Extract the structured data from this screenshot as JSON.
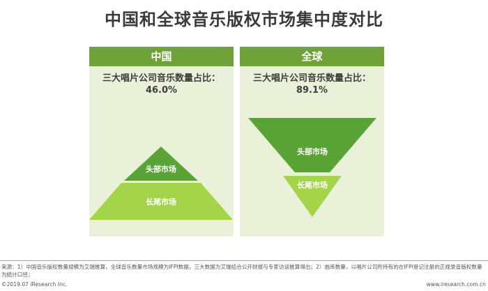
{
  "title": "中国和全球音乐版权市场集中度对比",
  "panels": {
    "china": {
      "header": "中国",
      "stat_label": "三大唱片公司音乐数量占比：",
      "stat_value": "46.0%",
      "top_label": "头部市场",
      "bottom_label": "长尾市场"
    },
    "global": {
      "header": "全球",
      "stat_label": "三大唱片公司音乐数量占比：",
      "stat_value": "89.1%",
      "top_label": "头部市场",
      "bottom_label": "长尾市场"
    }
  },
  "colors": {
    "header_green": "#6ea33a",
    "panel_bg": "#e9f2d9",
    "head_green": "#5aa437",
    "tail_green": "#a4d44a"
  },
  "source": "来源：1）中国音乐版权数量规模为艾瑞推算，全球音乐数量市场规模为IFPI数据，三大数据为艾瑞结合公开财报与专家访谈推算得出；2）曲库数量，以唱片公司所持有的在IFPI登记注册的正规录音版权数量为统计口径；",
  "footer_left": "©2019.07 iResearch Inc.",
  "footer_right": "www.iresearch.com.cn"
}
